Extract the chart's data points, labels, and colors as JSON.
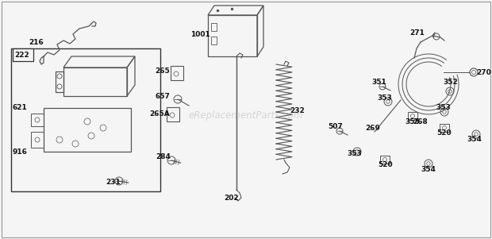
{
  "bg_color": "#f5f5f5",
  "watermark": "eReplacementParts.com",
  "fig_w": 6.2,
  "fig_h": 3.01,
  "dpi": 100,
  "part_color": "#555555",
  "label_color": "#111111",
  "label_fs": 6.5,
  "label_bold": true,
  "border_color": "#333333",
  "watermark_color": "#bbbbbb",
  "watermark_alpha": 0.55,
  "watermark_fs": 8.5
}
